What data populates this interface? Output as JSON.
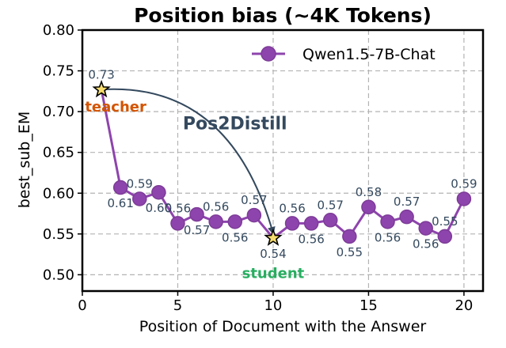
{
  "chart_data": {
    "type": "line",
    "title": "Position bias (~4K Tokens)",
    "xlabel": "Position of Document with the Answer",
    "ylabel": "best_sub_EM",
    "xlim": [
      0,
      21
    ],
    "ylim": [
      0.48,
      0.8
    ],
    "xticks": [
      0,
      5,
      10,
      15,
      20
    ],
    "yticks": [
      0.5,
      0.55,
      0.6,
      0.65,
      0.7,
      0.75,
      0.8
    ],
    "ytick_labels": [
      "0.50",
      "0.55",
      "0.60",
      "0.65",
      "0.70",
      "0.75",
      "0.80"
    ],
    "grid": true,
    "legend_position": "top-right",
    "series": [
      {
        "name": "Qwen1.5-7B-Chat",
        "color": "#8e44ad",
        "x": [
          1,
          2,
          3,
          4,
          5,
          6,
          7,
          8,
          9,
          10,
          11,
          12,
          13,
          14,
          15,
          16,
          17,
          18,
          19,
          20
        ],
        "y": [
          0.727,
          0.607,
          0.593,
          0.601,
          0.563,
          0.574,
          0.565,
          0.565,
          0.573,
          0.545,
          0.563,
          0.563,
          0.567,
          0.547,
          0.583,
          0.565,
          0.571,
          0.557,
          0.547,
          0.593
        ],
        "labels": [
          "0.73",
          "0.61",
          "0.59",
          "0.60",
          "0.56",
          "0.57",
          "0.56",
          "0.56",
          "0.57",
          "0.54",
          "0.56",
          "0.56",
          "0.57",
          "0.55",
          "0.58",
          "0.56",
          "0.57",
          "0.56",
          "0.55",
          "0.59"
        ],
        "label_side": [
          "above",
          "below",
          "above",
          "below",
          "above",
          "below",
          "above",
          "below",
          "above",
          "below",
          "above",
          "below",
          "above",
          "below",
          "above",
          "below",
          "above",
          "below",
          "above",
          "above"
        ]
      }
    ],
    "annotations": [
      {
        "text": "teacher",
        "x": 1,
        "y": 0.7,
        "color": "#d35400"
      },
      {
        "text": "student",
        "x": 10,
        "y": 0.5,
        "color": "#27ae60"
      },
      {
        "text": "Pos2Distill",
        "x": 8.0,
        "y": 0.69,
        "color": "#34495e"
      }
    ],
    "arrow": {
      "from": [
        1,
        0.727
      ],
      "to": [
        10,
        0.545
      ],
      "color": "#34495e"
    },
    "star_markers": [
      {
        "x": 1,
        "y": 0.727,
        "color": "#f7dc6f"
      },
      {
        "x": 10,
        "y": 0.545,
        "color": "#f7dc6f"
      }
    ],
    "line_color": "#8e44ad",
    "marker_edge": "#7d3c98",
    "label_color": "#34495e"
  }
}
